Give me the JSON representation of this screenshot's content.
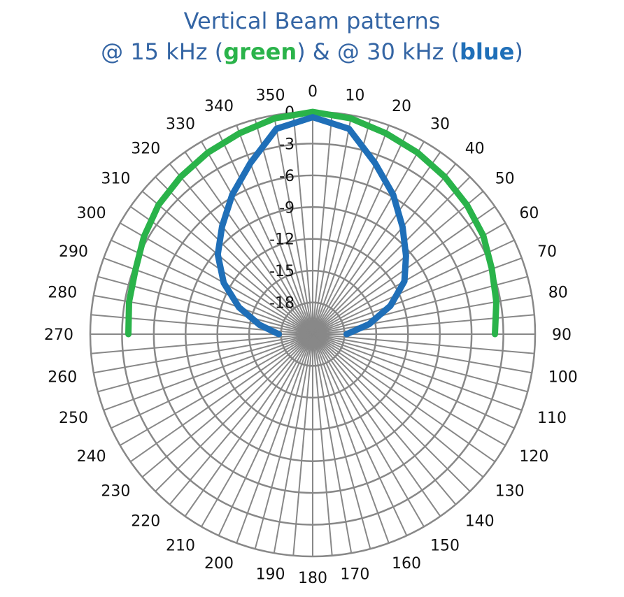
{
  "title": {
    "line1": "Vertical Beam patterns",
    "line2_a": "@ 15 kHz (",
    "line2_green": "green",
    "line2_b": ") & @ 30 kHz (",
    "line2_blue": "blue",
    "line2_c": ")"
  },
  "colors": {
    "title": "#3465a4",
    "grid": "#888888",
    "green": "#2ab34a",
    "blue": "#1f6fb8"
  },
  "chart_data": {
    "type": "polar-line",
    "angular_ticks": [
      "0",
      "10",
      "20",
      "30",
      "40",
      "50",
      "60",
      "70",
      "80",
      "90",
      "100",
      "110",
      "120",
      "130",
      "140",
      "150",
      "160",
      "170",
      "180",
      "190",
      "200",
      "210",
      "220",
      "230",
      "240",
      "250",
      "260",
      "270",
      "280",
      "290",
      "300",
      "310",
      "320",
      "330",
      "340",
      "350"
    ],
    "radial_ticks": [
      "0",
      "-3",
      "-6",
      "-9",
      "-12",
      "-15",
      "-18"
    ],
    "rlim": [
      -18,
      0
    ],
    "grid": true,
    "series": [
      {
        "color": "green",
        "theta": [
          270,
          280,
          290,
          300,
          310,
          320,
          330,
          340,
          350,
          0,
          10,
          20,
          30,
          40,
          50,
          60,
          70,
          80,
          90
        ],
        "r": [
          -3.6,
          -3.4,
          -3.2,
          -2.6,
          -2.0,
          -1.6,
          -1.2,
          -0.8,
          -0.3,
          0,
          -0.3,
          -0.8,
          -1.2,
          -1.6,
          -2.0,
          -2.4,
          -3.0,
          -3.4,
          -3.8
        ]
      },
      {
        "color": "blue",
        "theta": [
          270,
          280,
          290,
          300,
          310,
          320,
          330,
          340,
          350,
          0,
          10,
          20,
          30,
          40,
          50,
          60,
          70,
          80,
          90
        ],
        "r": [
          -17.8,
          -15.9,
          -13.6,
          -11.3,
          -9.3,
          -7.7,
          -5.8,
          -3.8,
          -1.3,
          -0.5,
          -1.3,
          -3.8,
          -5.8,
          -7.8,
          -9.5,
          -11.0,
          -13.2,
          -15.6,
          -17.8
        ]
      }
    ]
  }
}
